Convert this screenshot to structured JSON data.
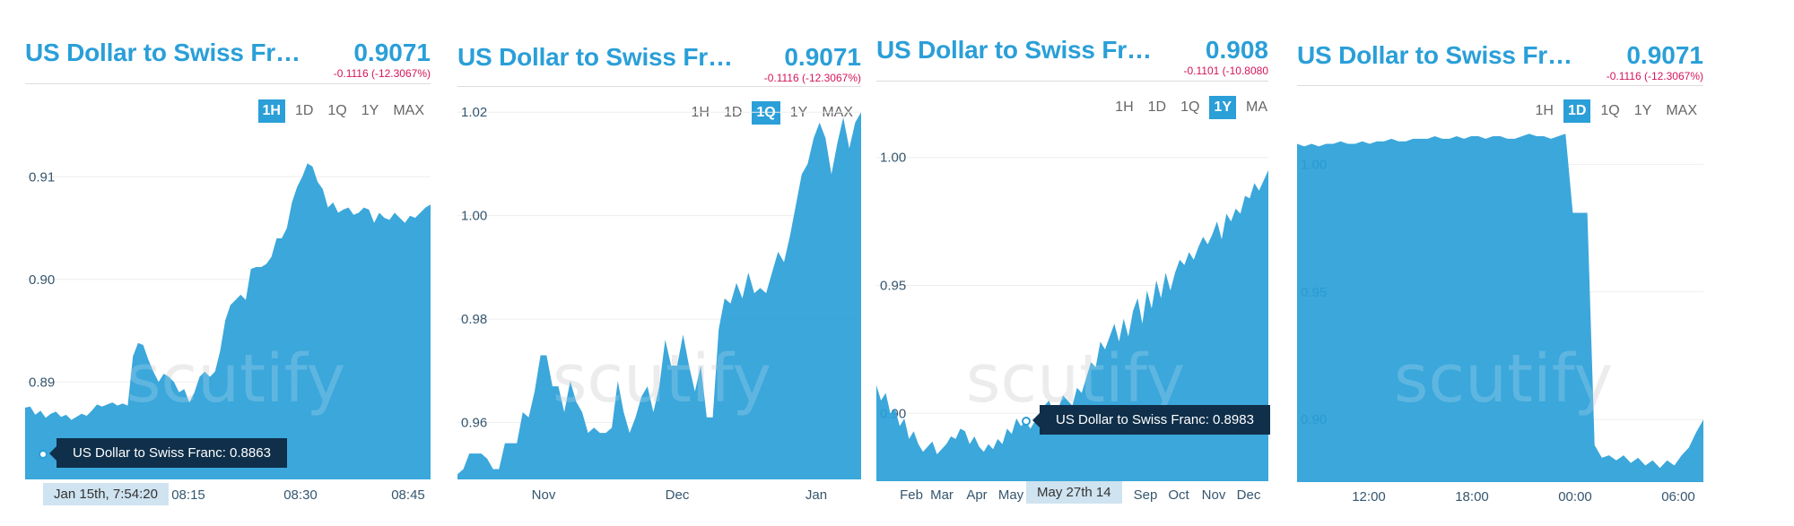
{
  "panels": [
    {
      "title": "US Dollar to Swiss Fr…",
      "value": "0.9071",
      "change": "-0.1116  (-12.3067%)",
      "ranges": [
        {
          "label": "1H",
          "active": true
        },
        {
          "label": "1D",
          "active": false
        },
        {
          "label": "1Q",
          "active": false
        },
        {
          "label": "1Y",
          "active": false
        },
        {
          "label": "MAX",
          "active": false
        }
      ],
      "watermark": "scutify",
      "tooltip": "US Dollar to Swiss Franc: 0.8863",
      "x_tooltip": "Jan 15th, 7:54:20"
    },
    {
      "title": "US Dollar to Swiss Fr…",
      "value": "0.9071",
      "change": "-0.1116  (-12.3067%)",
      "ranges": [
        {
          "label": "1H",
          "active": false
        },
        {
          "label": "1D",
          "active": false
        },
        {
          "label": "1Q",
          "active": true
        },
        {
          "label": "1Y",
          "active": false
        },
        {
          "label": "MAX",
          "active": false
        }
      ],
      "watermark": "scutify",
      "tooltip": "",
      "x_tooltip": ""
    },
    {
      "title": "US Dollar to Swiss Fr…",
      "value": "0.908",
      "change": "-0.1101  (-10.8080",
      "ranges": [
        {
          "label": "1H",
          "active": false
        },
        {
          "label": "1D",
          "active": false
        },
        {
          "label": "1Q",
          "active": false
        },
        {
          "label": "1Y",
          "active": true
        },
        {
          "label": "MA",
          "active": false
        }
      ],
      "watermark": "scutify",
      "tooltip": "US Dollar to Swiss Franc: 0.8983",
      "x_tooltip": "May 27th 14"
    },
    {
      "title": "US Dollar to Swiss Fr…",
      "value": "0.9071",
      "change": "-0.1116  (-12.3067%)",
      "ranges": [
        {
          "label": "1H",
          "active": false
        },
        {
          "label": "1D",
          "active": true
        },
        {
          "label": "1Q",
          "active": false
        },
        {
          "label": "1Y",
          "active": false
        },
        {
          "label": "MAX",
          "active": false
        }
      ],
      "watermark": "scutify",
      "tooltip": "",
      "x_tooltip": ""
    }
  ],
  "colors": {
    "accent": "#2a9fd8",
    "negative": "#d4145a",
    "fill": "#2a9fd8",
    "tooltip": "#0f2f4a"
  },
  "chart_data": [
    {
      "type": "area",
      "series": [
        {
          "values": [
            0.8875,
            0.8876,
            0.8868,
            0.8872,
            0.8865,
            0.8869,
            0.8871,
            0.8866,
            0.8868,
            0.8863,
            0.8866,
            0.8869,
            0.8867,
            0.8872,
            0.8878,
            0.8876,
            0.8878,
            0.888,
            0.8877,
            0.8879,
            0.8877,
            0.8925,
            0.8938,
            0.8936,
            0.8922,
            0.891,
            0.89,
            0.8908,
            0.8905,
            0.89,
            0.889,
            0.8893,
            0.888,
            0.889,
            0.8905,
            0.891,
            0.8905,
            0.891,
            0.893,
            0.896,
            0.8975,
            0.898,
            0.8985,
            0.898,
            0.901,
            0.9012,
            0.9012,
            0.9015,
            0.9022,
            0.904,
            0.904,
            0.905,
            0.9075,
            0.909,
            0.91,
            0.9113,
            0.911,
            0.9095,
            0.9088,
            0.907,
            0.9075,
            0.9065,
            0.9068,
            0.907,
            0.9063,
            0.9065,
            0.907,
            0.9068,
            0.9055,
            0.9065,
            0.906,
            0.9058,
            0.9065,
            0.906,
            0.9055,
            0.9062,
            0.906,
            0.9065,
            0.907,
            0.9073
          ]
        }
      ],
      "x_ticks": [
        "08:15",
        "08:30",
        "08:45"
      ],
      "y_ticks": [
        0.89,
        0.9,
        0.91
      ],
      "ylim": [
        0.8805,
        0.9185
      ]
    },
    {
      "type": "area",
      "series": [
        {
          "values": [
            0.95,
            0.951,
            0.954,
            0.954,
            0.954,
            0.953,
            0.951,
            0.951,
            0.956,
            0.956,
            0.956,
            0.962,
            0.961,
            0.966,
            0.973,
            0.973,
            0.967,
            0.967,
            0.962,
            0.968,
            0.964,
            0.962,
            0.958,
            0.959,
            0.958,
            0.958,
            0.959,
            0.968,
            0.962,
            0.958,
            0.961,
            0.965,
            0.967,
            0.962,
            0.967,
            0.976,
            0.971,
            0.971,
            0.977,
            0.971,
            0.966,
            0.971,
            0.961,
            0.961,
            0.978,
            0.984,
            0.983,
            0.987,
            0.984,
            0.989,
            0.985,
            0.986,
            0.985,
            0.989,
            0.993,
            0.991,
            0.996,
            1.002,
            1.008,
            1.01,
            1.015,
            1.018,
            1.015,
            1.008,
            1.014,
            1.019,
            1.013,
            1.018,
            1.02
          ]
        }
      ],
      "x_ticks": [
        "Nov",
        "Dec",
        "Jan"
      ],
      "y_ticks": [
        0.96,
        0.98,
        1.0,
        1.02
      ],
      "ylim": [
        0.949,
        1.0235
      ]
    },
    {
      "type": "area",
      "series": [
        {
          "values": [
            0.911,
            0.905,
            0.908,
            0.9,
            0.902,
            0.895,
            0.898,
            0.89,
            0.893,
            0.888,
            0.885,
            0.887,
            0.889,
            0.884,
            0.886,
            0.888,
            0.891,
            0.89,
            0.894,
            0.893,
            0.888,
            0.891,
            0.887,
            0.885,
            0.888,
            0.886,
            0.89,
            0.888,
            0.894,
            0.892,
            0.898,
            0.895,
            0.897,
            0.894,
            0.897,
            0.9,
            0.903,
            0.905,
            0.9,
            0.902,
            0.907,
            0.905,
            0.903,
            0.91,
            0.908,
            0.914,
            0.92,
            0.918,
            0.928,
            0.925,
            0.93,
            0.935,
            0.928,
            0.937,
            0.93,
            0.94,
            0.945,
            0.935,
            0.948,
            0.941,
            0.952,
            0.945,
            0.955,
            0.948,
            0.955,
            0.96,
            0.958,
            0.963,
            0.96,
            0.965,
            0.969,
            0.966,
            0.97,
            0.975,
            0.968,
            0.978,
            0.975,
            0.98,
            0.978,
            0.985,
            0.984,
            0.99,
            0.987,
            0.991,
            0.995
          ]
        }
      ],
      "x_ticks": [
        "Feb",
        "Mar",
        "Apr",
        "May",
        "Sep",
        "Oct",
        "Nov",
        "Dec"
      ],
      "y_ticks": [
        0.9,
        0.95,
        1.0
      ],
      "ylim": [
        0.8735,
        1.0265
      ]
    },
    {
      "type": "area",
      "series": [
        {
          "values": [
            1.008,
            1.007,
            1.008,
            1.007,
            1.008,
            1.008,
            1.009,
            1.008,
            1.008,
            1.009,
            1.008,
            1.009,
            1.009,
            1.01,
            1.009,
            1.009,
            1.01,
            1.01,
            1.01,
            1.011,
            1.01,
            1.01,
            1.011,
            1.01,
            1.011,
            1.011,
            1.01,
            1.011,
            1.011,
            1.01,
            1.01,
            1.011,
            1.012,
            1.011,
            1.011,
            1.01,
            1.011,
            1.012,
            0.981,
            0.981,
            0.981,
            0.89,
            0.885,
            0.886,
            0.884,
            0.886,
            0.883,
            0.885,
            0.882,
            0.884,
            0.881,
            0.884,
            0.882,
            0.886,
            0.889,
            0.895,
            0.9
          ]
        }
      ],
      "x_ticks": [
        "12:00",
        "18:00",
        "00:00",
        "06:00"
      ],
      "y_ticks": [
        0.9,
        0.95,
        1.0
      ],
      "ylim": [
        0.8755,
        1.0275
      ]
    }
  ]
}
